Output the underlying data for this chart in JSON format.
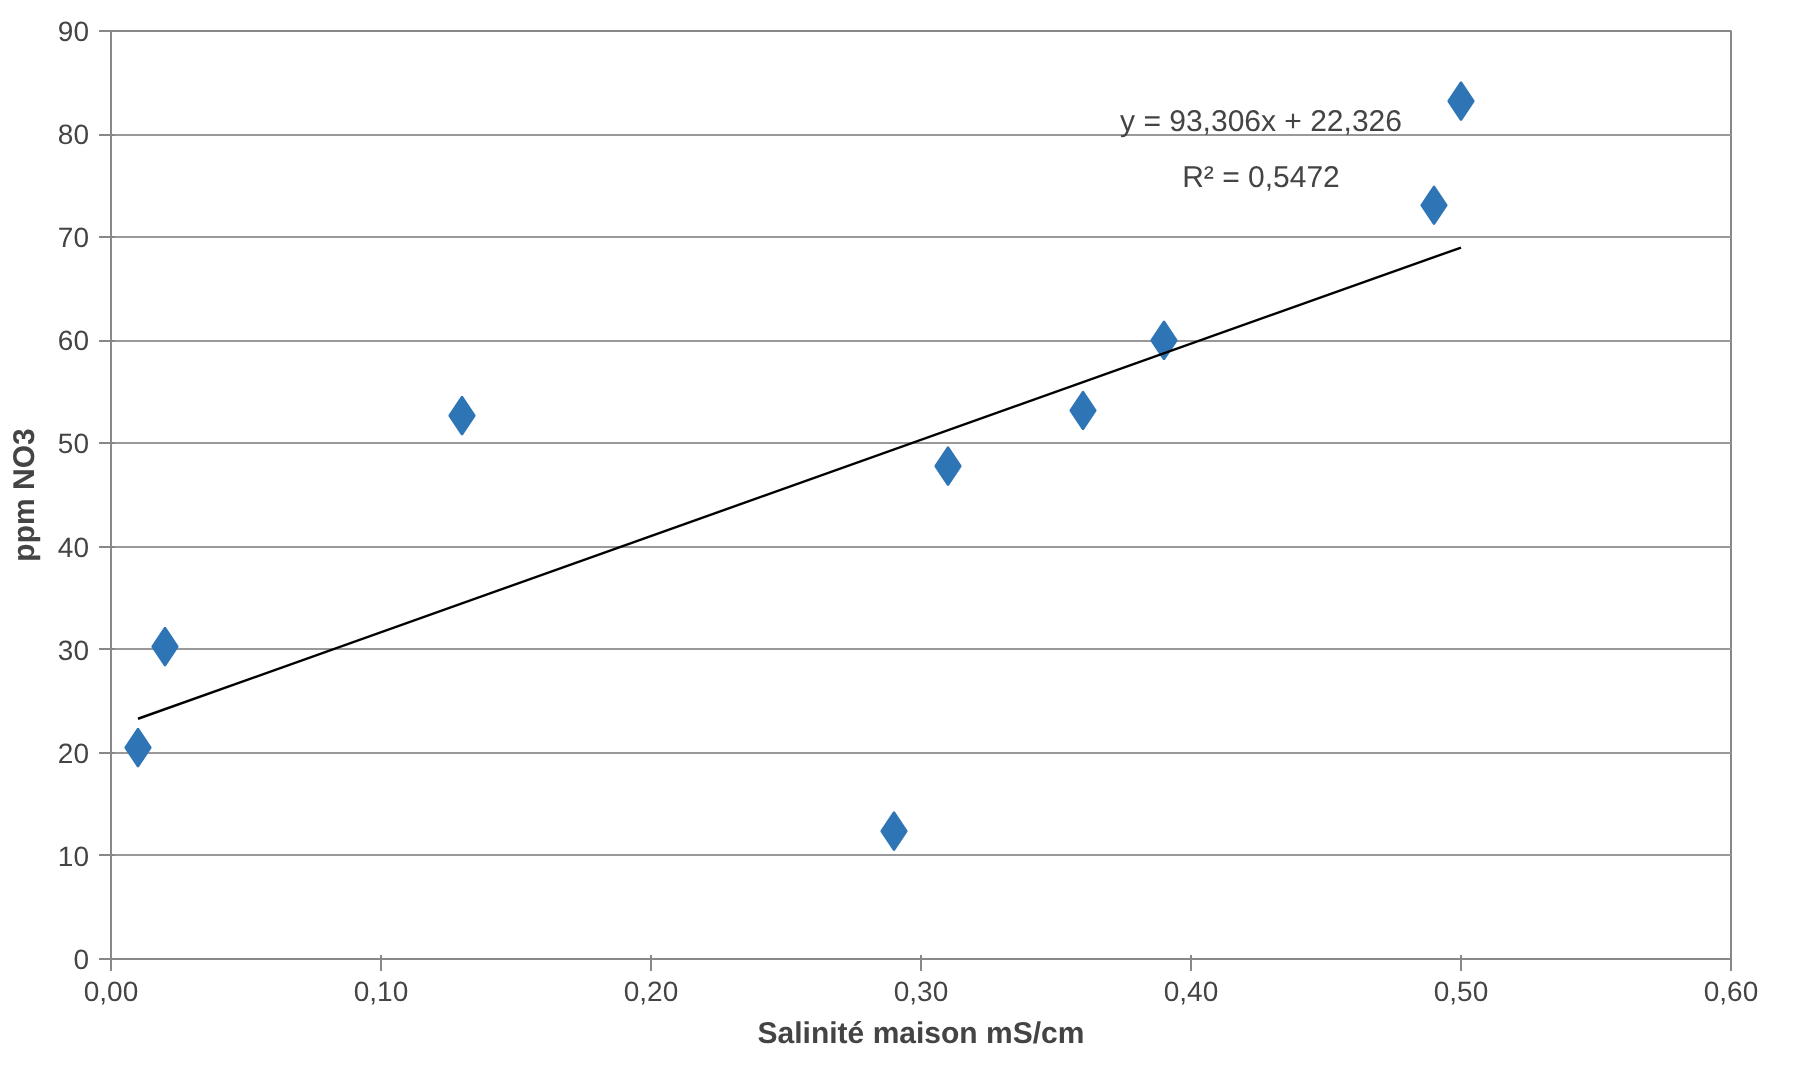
{
  "chart_data": {
    "type": "scatter",
    "xlabel": "Salinité maison mS/cm",
    "ylabel": "ppm NO3",
    "series": [
      {
        "color": "#2e75b6",
        "marker": "diamond",
        "x": [
          0.01,
          0.02,
          0.13,
          0.29,
          0.31,
          0.36,
          0.39,
          0.49,
          0.5
        ],
        "values": [
          20.5,
          30.3,
          52.7,
          12.4,
          47.8,
          53.2,
          60.0,
          73.1,
          83.2
        ]
      },
      {
        "type": "line",
        "color": "#000000",
        "line_style": "solid",
        "x": [
          0.01,
          0.5
        ],
        "values": [
          23.3,
          69.0
        ]
      }
    ],
    "annotations": [
      "y = 93,306x + 22,326",
      "R² = 0,5472"
    ],
    "xlim": [
      0,
      0.6
    ],
    "ylim": [
      0,
      90
    ],
    "xticks": [
      {
        "value": 0,
        "label": "0,00"
      },
      {
        "value": 0.1,
        "label": "0,10"
      },
      {
        "value": 0.2,
        "label": "0,20"
      },
      {
        "value": 0.3,
        "label": "0,30"
      },
      {
        "value": 0.4,
        "label": "0,40"
      },
      {
        "value": 0.5,
        "label": "0,50"
      },
      {
        "value": 0.6,
        "label": "0,60"
      }
    ],
    "yticks": [
      0,
      10,
      20,
      30,
      40,
      50,
      60,
      70,
      80,
      90
    ],
    "grid": "y"
  }
}
